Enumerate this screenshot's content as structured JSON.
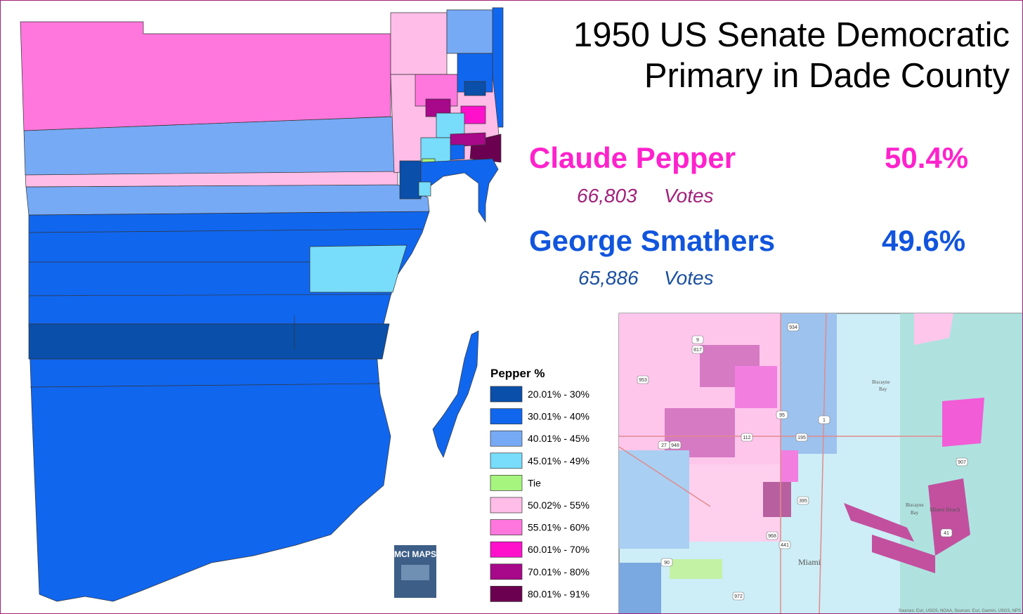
{
  "title": [
    "1950 US Senate Democratic",
    "Primary in Dade County"
  ],
  "candidates": [
    {
      "name": "Claude Pepper",
      "percent": "50.4%",
      "votes": "66,803",
      "votes_label": "Votes"
    },
    {
      "name": "George Smathers",
      "percent": "49.6%",
      "votes": "65,886",
      "votes_label": "Votes"
    }
  ],
  "legend": {
    "title": "Pepper  %",
    "items": [
      {
        "label": "20.01% - 30%",
        "color": "#0a4faa"
      },
      {
        "label": "30.01% - 40%",
        "color": "#1166ee"
      },
      {
        "label": "40.01% - 45%",
        "color": "#77aaf5"
      },
      {
        "label": "45.01% - 49%",
        "color": "#77ddfa"
      },
      {
        "label": "Tie",
        "color": "#a6f57e"
      },
      {
        "label": "50.02% - 55%",
        "color": "#ffbde8"
      },
      {
        "label": "55.01% - 60%",
        "color": "#ff77dd"
      },
      {
        "label": "60.01% - 70%",
        "color": "#ff11cc"
      },
      {
        "label": "70.01% - 80%",
        "color": "#a8088a"
      },
      {
        "label": "80.01% - 91%",
        "color": "#6b0050"
      }
    ]
  },
  "logo": "MCI MAPS",
  "inset": {
    "labels": [
      "Miami",
      "Biscayne",
      "Bay",
      "Miami Beach",
      "Biscayne",
      "Bay"
    ],
    "roads": [
      "934",
      "9",
      "817",
      "953",
      "95",
      "1",
      "195",
      "27",
      "948",
      "112",
      "907",
      "441",
      "968",
      "395",
      "90",
      "972",
      "41"
    ],
    "credits": "Sources: Esri, USGS, NOAA, Sources: Esri, Garmin, USGS, NPS"
  }
}
